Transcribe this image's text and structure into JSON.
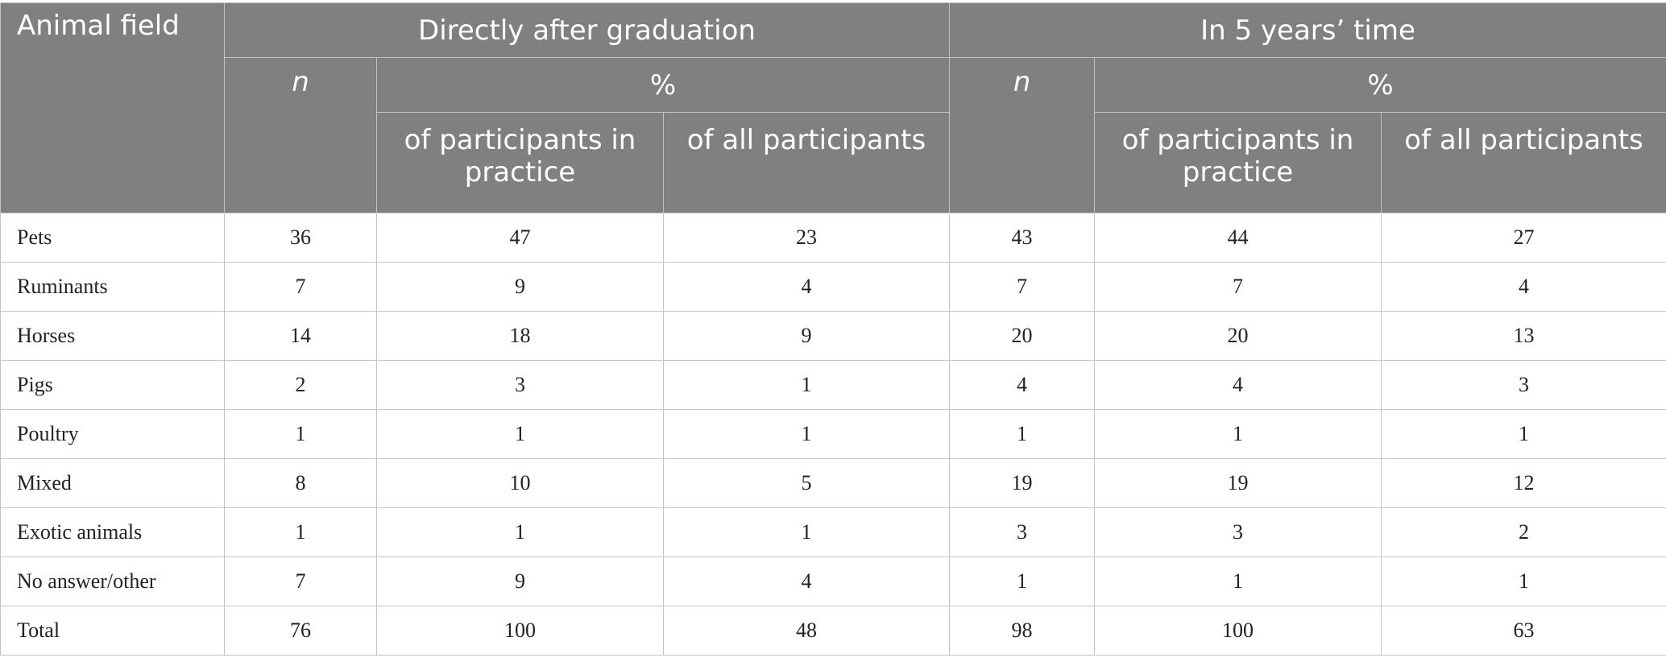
{
  "header": {
    "animal_field": "Animal field",
    "group_after": "Directly after graduation",
    "group_5years": "In 5 years’ time",
    "n": "n",
    "pct": "%",
    "of_practice": "of participants in practice",
    "of_all": "of all participants"
  },
  "rows": [
    {
      "label": "Pets",
      "values": [
        "36",
        "47",
        "23",
        "43",
        "44",
        "27"
      ]
    },
    {
      "label": "Ruminants",
      "values": [
        "7",
        "9",
        "4",
        "7",
        "7",
        "4"
      ]
    },
    {
      "label": "Horses",
      "values": [
        "14",
        "18",
        "9",
        "20",
        "20",
        "13"
      ]
    },
    {
      "label": "Pigs",
      "values": [
        "2",
        "3",
        "1",
        "4",
        "4",
        "3"
      ]
    },
    {
      "label": "Poultry",
      "values": [
        "1",
        "1",
        "1",
        "1",
        "1",
        "1"
      ]
    },
    {
      "label": "Mixed",
      "values": [
        "8",
        "10",
        "5",
        "19",
        "19",
        "12"
      ]
    },
    {
      "label": "Exotic animals",
      "values": [
        "1",
        "1",
        "1",
        "3",
        "3",
        "2"
      ]
    },
    {
      "label": "No answer/other",
      "values": [
        "7",
        "9",
        "4",
        "1",
        "1",
        "1"
      ]
    },
    {
      "label": "Total",
      "values": [
        "76",
        "100",
        "48",
        "98",
        "100",
        "63"
      ]
    }
  ],
  "colors": {
    "header_bg": "#808080",
    "header_text": "#ffffff",
    "grid": "#c6c6c6"
  }
}
